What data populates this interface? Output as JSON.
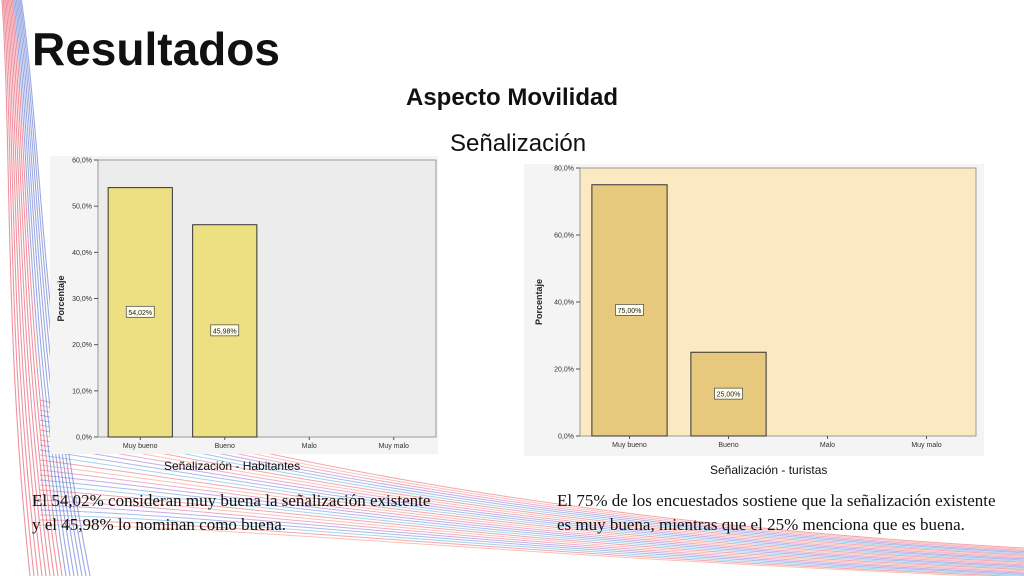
{
  "slide": {
    "title": "Resultados",
    "subtitle": "Aspecto Movilidad",
    "section": "Señalización"
  },
  "captions": {
    "left": "Señalización - Habitantes",
    "right": "Señalización -  turistas"
  },
  "paragraphs": {
    "left": "El 54,02% consideran muy buena la señalización existente y el 45,98% lo nominan como buena.",
    "right": "El 75% de los encuestados sostiene que la señalización existente es muy buena, mientras que el 25% menciona que es buena."
  },
  "colors": {
    "chart1_bg": "#ececec",
    "chart1_bar": "#ede082",
    "chart2_bg": "#fbe9c1",
    "chart2_bar": "#e7c97d",
    "deco_red": "#e23b52",
    "deco_blue": "#4a63c8"
  },
  "chart_data": [
    {
      "type": "bar",
      "categories": [
        "Muy bueno",
        "Bueno",
        "Malo",
        "Muy malo"
      ],
      "values": [
        54.02,
        45.98,
        0,
        0
      ],
      "data_labels": [
        "54,02%",
        "45,98%",
        "",
        ""
      ],
      "ylabel": "Porcentaje",
      "yticks": [
        "0,0%",
        "10,0%",
        "20,0%",
        "30,0%",
        "40,0%",
        "50,0%",
        "60,0%"
      ],
      "ylim": [
        0,
        60
      ],
      "grid": false
    },
    {
      "type": "bar",
      "categories": [
        "Muy bueno",
        "Bueno",
        "Malo",
        "Muy malo"
      ],
      "values": [
        75,
        25,
        0,
        0
      ],
      "data_labels": [
        "75,00%",
        "25,00%",
        "",
        ""
      ],
      "ylabel": "Porcentaje",
      "yticks": [
        "0,0%",
        "20,0%",
        "40,0%",
        "60,0%",
        "80,0%"
      ],
      "ylim": [
        0,
        80
      ],
      "grid": false
    }
  ]
}
